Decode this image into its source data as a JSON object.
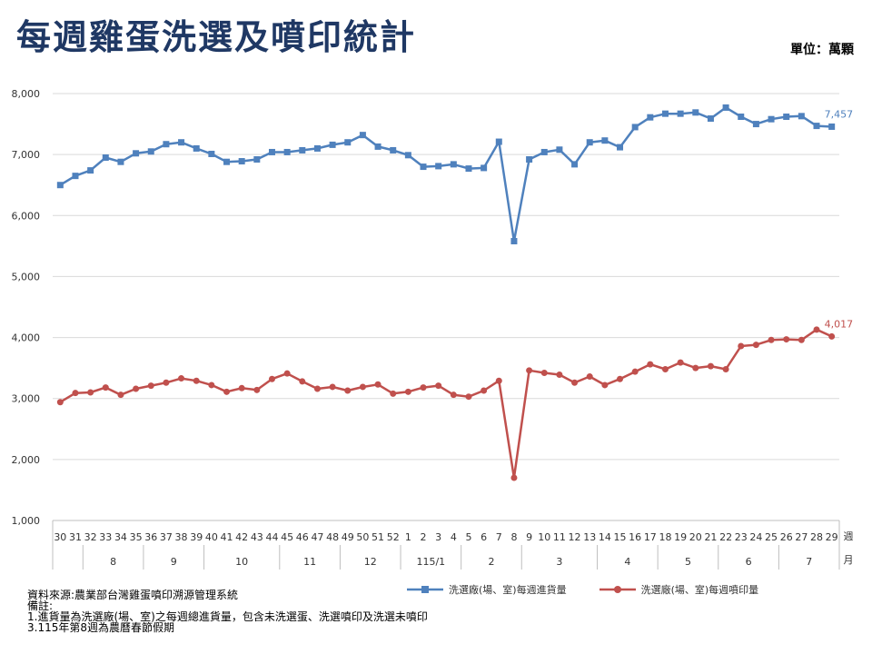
{
  "page": {
    "title": "每週雞蛋洗選及噴印統計",
    "unit": "單位：萬顆"
  },
  "chart_data": {
    "type": "line",
    "ylim": [
      1000,
      8000
    ],
    "y_ticks": [
      "1,000",
      "2,000",
      "3,000",
      "4,000",
      "5,000",
      "6,000",
      "7,000",
      "8,000"
    ],
    "y_tick_values": [
      1000,
      2000,
      3000,
      4000,
      5000,
      6000,
      7000,
      8000
    ],
    "x_week_labels": [
      "30",
      "31",
      "32",
      "33",
      "34",
      "35",
      "36",
      "37",
      "38",
      "39",
      "40",
      "41",
      "42",
      "43",
      "44",
      "45",
      "46",
      "47",
      "48",
      "49",
      "50",
      "51",
      "52",
      "1",
      "2",
      "3",
      "4",
      "5",
      "6",
      "7",
      "8",
      "9",
      "10",
      "11",
      "12",
      "13",
      "14",
      "15",
      "16",
      "17",
      "18",
      "19",
      "20",
      "21",
      "22",
      "23",
      "24",
      "25",
      "26",
      "27",
      "28",
      "29"
    ],
    "x_axis_unit": [
      "週",
      "月"
    ],
    "month_groups": [
      {
        "label": "",
        "count": 2
      },
      {
        "label": "8",
        "count": 4
      },
      {
        "label": "9",
        "count": 4
      },
      {
        "label": "10",
        "count": 5
      },
      {
        "label": "11",
        "count": 4
      },
      {
        "label": "12",
        "count": 4
      },
      {
        "label": "115/1",
        "count": 4
      },
      {
        "label": "2",
        "count": 4
      },
      {
        "label": "3",
        "count": 5
      },
      {
        "label": "4",
        "count": 4
      },
      {
        "label": "5",
        "count": 4
      },
      {
        "label": "6",
        "count": 4
      },
      {
        "label": "7",
        "count": 4
      }
    ],
    "series": [
      {
        "name": "洗選廠(場、室)每週進貨量",
        "color": "#4f81bd",
        "marker": "square",
        "values": [
          6500,
          6650,
          6740,
          6950,
          6880,
          7020,
          7050,
          7170,
          7200,
          7100,
          7010,
          6880,
          6890,
          6920,
          7040,
          7040,
          7070,
          7100,
          7160,
          7200,
          7320,
          7130,
          7070,
          6990,
          6800,
          6810,
          6840,
          6770,
          6780,
          7210,
          5580,
          6920,
          7040,
          7080,
          6840,
          7200,
          7230,
          7120,
          7450,
          7610,
          7670,
          7670,
          7690,
          7590,
          7770,
          7620,
          7500,
          7580,
          7620,
          7630,
          7470,
          7457
        ],
        "last_label": "7,457"
      },
      {
        "name": "洗選廠(場、室)每週噴印量",
        "color": "#c0504d",
        "marker": "circle",
        "values": [
          2940,
          3090,
          3100,
          3180,
          3060,
          3160,
          3210,
          3260,
          3330,
          3290,
          3220,
          3110,
          3170,
          3140,
          3320,
          3410,
          3280,
          3160,
          3190,
          3130,
          3190,
          3230,
          3080,
          3110,
          3180,
          3210,
          3060,
          3030,
          3130,
          3290,
          1700,
          3460,
          3420,
          3390,
          3260,
          3360,
          3220,
          3320,
          3440,
          3560,
          3480,
          3590,
          3500,
          3530,
          3480,
          3860,
          3880,
          3960,
          3970,
          3960,
          4130,
          4017
        ],
        "last_label": "4,017"
      }
    ]
  },
  "notes": {
    "source": "資料來源:農業部台灣雞蛋噴印溯源管理系統",
    "remark_header": "備註:",
    "remark_1": "1.進貨量為洗選廠(場、室)之每週總進貨量，包含未洗選蛋、洗選噴印及洗選未噴印",
    "remark_3": "3.115年第8週為農曆春節假期"
  }
}
